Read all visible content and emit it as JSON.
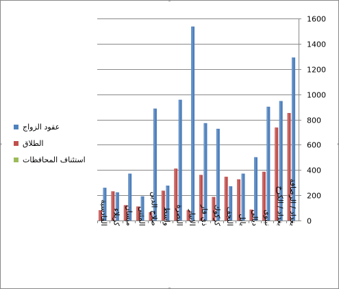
{
  "chart_data": {
    "type": "bar",
    "categories": [
      "القادسية",
      "كربلاء",
      "ميسان",
      "المثنى",
      "صلاح الدين",
      "واسط",
      "البصرة",
      "الانبار",
      "ذي قار",
      "كركوك",
      "النجف",
      "بابل",
      "ديالى",
      "نينوى",
      "بغداد / الكرخ",
      "بغداد / الرصافة"
    ],
    "series": [
      {
        "name": "عقود الزواج",
        "color": "#4F81BD",
        "values": [
          258,
          222,
          370,
          190,
          885,
          275,
          955,
          1535,
          770,
          725,
          270,
          370,
          500,
          900,
          945,
          1290
        ]
      },
      {
        "name": "الطلاق",
        "color": "#C0504D",
        "values": [
          80,
          230,
          120,
          110,
          65,
          235,
          410,
          80,
          360,
          185,
          345,
          325,
          85,
          385,
          735,
          850
        ]
      },
      {
        "name": "استئناف المحافظات",
        "color": "#9BBB59",
        "values": [
          0,
          0,
          0,
          0,
          0,
          0,
          0,
          0,
          0,
          0,
          0,
          0,
          0,
          0,
          0,
          0
        ]
      }
    ],
    "yticks": [
      "0",
      "200",
      "400",
      "600",
      "800",
      "1000",
      "1200",
      "1400",
      "1600"
    ],
    "ylim": [
      0,
      1600
    ],
    "y_axis_side": "right",
    "grid": true,
    "legend_position": "left"
  }
}
